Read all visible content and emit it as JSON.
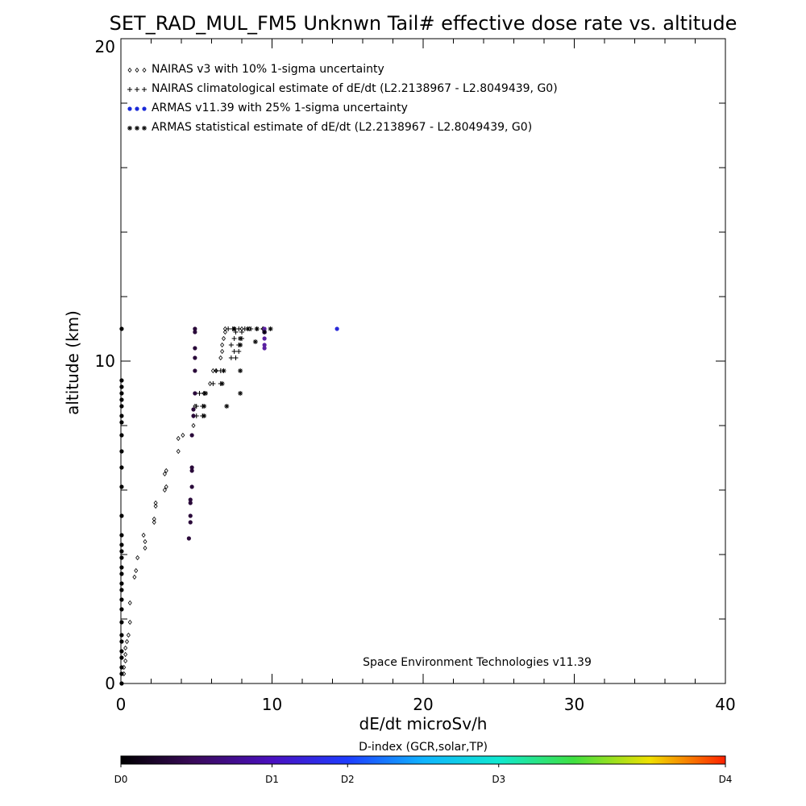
{
  "chart_data": {
    "type": "scatter",
    "title": "SET_RAD_MUL_FM5 Unknwn Tail#  effective dose rate vs. altitude",
    "xlabel": "dE/dt microSv/h",
    "ylabel": "altitude (km)",
    "xlim": [
      0,
      40
    ],
    "ylim": [
      0,
      20
    ],
    "x_ticks": [
      "0",
      "10",
      "20",
      "30",
      "40"
    ],
    "y_ticks": [
      "0",
      "10",
      "20"
    ],
    "grid": false,
    "legend_position": "top-left",
    "credit": "Space Environment Technologies v11.39",
    "colorbar": {
      "title": "D-index (GCR,solar,TP)",
      "labels": [
        {
          "text": "D0",
          "value": 0
        },
        {
          "text": "D1",
          "value": 0.25
        },
        {
          "text": "D2",
          "value": 0.375
        },
        {
          "text": "D3",
          "value": 0.625
        },
        {
          "text": "D4",
          "value": 1.0
        }
      ]
    },
    "series": [
      {
        "name": "NAIRAS v3 with 10% 1-sigma uncertainty",
        "marker": "diamond",
        "color": "#000000",
        "points": [
          [
            0.2,
            0.3
          ],
          [
            0.2,
            0.5
          ],
          [
            0.3,
            0.7
          ],
          [
            0.3,
            0.9
          ],
          [
            0.3,
            1.1
          ],
          [
            0.4,
            1.3
          ],
          [
            0.5,
            1.5
          ],
          [
            0.6,
            1.9
          ],
          [
            0.6,
            2.5
          ],
          [
            0.9,
            3.3
          ],
          [
            1.0,
            3.5
          ],
          [
            1.1,
            3.9
          ],
          [
            1.6,
            4.2
          ],
          [
            1.6,
            4.4
          ],
          [
            1.5,
            4.6
          ],
          [
            2.2,
            5.0
          ],
          [
            2.2,
            5.1
          ],
          [
            2.3,
            5.5
          ],
          [
            2.3,
            5.6
          ],
          [
            2.9,
            6.0
          ],
          [
            3.0,
            6.1
          ],
          [
            2.9,
            6.5
          ],
          [
            3.0,
            6.6
          ],
          [
            3.8,
            7.2
          ],
          [
            3.8,
            7.6
          ],
          [
            4.1,
            7.7
          ],
          [
            4.8,
            8.0
          ],
          [
            4.8,
            8.3
          ],
          [
            4.9,
            8.6
          ],
          [
            5.5,
            9.0
          ],
          [
            5.9,
            9.3
          ],
          [
            6.1,
            9.7
          ],
          [
            6.3,
            9.7
          ],
          [
            6.6,
            10.1
          ],
          [
            6.7,
            10.3
          ],
          [
            6.7,
            10.5
          ],
          [
            6.8,
            10.7
          ],
          [
            6.9,
            10.9
          ],
          [
            6.9,
            11.0
          ],
          [
            7.5,
            11.0
          ],
          [
            8.0,
            11.0
          ],
          [
            8.5,
            11.0
          ],
          [
            9.4,
            11.0
          ]
        ]
      },
      {
        "name": "NAIRAS climatological estimate of dE/dt (L2.2138967 - L2.8049439, G0)",
        "marker": "plus",
        "color": "#000000",
        "points": [
          [
            5.0,
            8.3
          ],
          [
            5.4,
            8.3
          ],
          [
            5.0,
            8.6
          ],
          [
            5.4,
            8.6
          ],
          [
            5.2,
            9.0
          ],
          [
            5.5,
            9.0
          ],
          [
            6.1,
            9.3
          ],
          [
            6.6,
            9.3
          ],
          [
            6.3,
            9.7
          ],
          [
            6.6,
            9.7
          ],
          [
            7.3,
            10.1
          ],
          [
            7.6,
            10.1
          ],
          [
            7.5,
            10.3
          ],
          [
            7.8,
            10.3
          ],
          [
            7.3,
            10.5
          ],
          [
            7.8,
            10.5
          ],
          [
            7.5,
            10.7
          ],
          [
            8.0,
            10.7
          ],
          [
            7.6,
            10.9
          ],
          [
            8.0,
            10.9
          ],
          [
            7.1,
            11.0
          ],
          [
            7.4,
            11.0
          ],
          [
            7.8,
            11.0
          ],
          [
            8.2,
            11.0
          ],
          [
            8.6,
            11.0
          ],
          [
            9.0,
            11.0
          ],
          [
            9.4,
            11.0
          ]
        ]
      },
      {
        "name": "ARMAS v11.39 with 25% 1-sigma uncertainty",
        "marker": "dot",
        "color": "#2a2ac8",
        "points": [
          [
            0.05,
            0.0
          ],
          [
            0.05,
            0.3
          ],
          [
            0.05,
            0.5
          ],
          [
            0.05,
            0.8
          ],
          [
            0.05,
            1.0
          ],
          [
            0.05,
            1.3
          ],
          [
            0.05,
            1.5
          ],
          [
            0.05,
            1.9
          ],
          [
            0.05,
            2.3
          ],
          [
            0.05,
            2.6
          ],
          [
            0.05,
            2.9
          ],
          [
            0.05,
            3.1
          ],
          [
            0.05,
            3.4
          ],
          [
            0.05,
            3.6
          ],
          [
            0.05,
            3.9
          ],
          [
            0.05,
            4.1
          ],
          [
            0.05,
            4.3
          ],
          [
            0.05,
            4.6
          ],
          [
            0.05,
            5.2
          ],
          [
            0.05,
            6.1
          ],
          [
            0.05,
            6.7
          ],
          [
            0.05,
            7.2
          ],
          [
            0.05,
            7.7
          ],
          [
            0.05,
            8.1
          ],
          [
            0.05,
            8.3
          ],
          [
            0.05,
            8.6
          ],
          [
            0.05,
            8.8
          ],
          [
            0.05,
            9.0
          ],
          [
            0.05,
            9.2
          ],
          [
            0.05,
            9.4
          ],
          [
            0.05,
            11.0
          ],
          [
            4.5,
            4.5
          ],
          [
            4.6,
            5.0
          ],
          [
            4.6,
            5.2
          ],
          [
            4.6,
            5.6
          ],
          [
            4.6,
            5.7
          ],
          [
            4.7,
            6.1
          ],
          [
            4.7,
            6.6
          ],
          [
            4.7,
            6.7
          ],
          [
            4.7,
            7.7
          ],
          [
            4.8,
            8.3
          ],
          [
            4.8,
            8.5
          ],
          [
            4.9,
            9.0
          ],
          [
            4.9,
            9.7
          ],
          [
            4.9,
            10.1
          ],
          [
            4.9,
            10.4
          ],
          [
            4.9,
            10.9
          ],
          [
            4.9,
            11.0
          ],
          [
            9.5,
            10.4
          ],
          [
            9.5,
            10.5
          ],
          [
            9.5,
            10.7
          ],
          [
            9.5,
            10.9
          ],
          [
            9.5,
            11.0
          ],
          [
            14.3,
            11.0
          ]
        ],
        "point_colors": {
          "0.05": "#000000",
          "4.5": "#2a0a3a",
          "4.6": "#2a0a3a",
          "4.7": "#2a0a3a",
          "4.8": "#2a0a3a",
          "4.9": "#2a0a3a",
          "9.5": "#5a20a0",
          "14.3": "#2a2ad8"
        }
      },
      {
        "name": "ARMAS statistical estimate of dE/dt (L2.2138967 - L2.8049439, G0)",
        "marker": "asterisk",
        "color": "#000000",
        "points": [
          [
            5.5,
            8.3
          ],
          [
            5.5,
            8.6
          ],
          [
            5.6,
            9.0
          ],
          [
            6.7,
            9.3
          ],
          [
            6.8,
            9.7
          ],
          [
            7.0,
            8.6
          ],
          [
            7.9,
            9.7
          ],
          [
            7.9,
            9.0
          ],
          [
            7.9,
            10.5
          ],
          [
            7.9,
            10.7
          ],
          [
            8.9,
            10.6
          ],
          [
            9.5,
            10.9
          ],
          [
            9.9,
            11.0
          ],
          [
            7.5,
            11.0
          ],
          [
            8.4,
            11.0
          ],
          [
            9.0,
            11.0
          ]
        ]
      }
    ]
  }
}
